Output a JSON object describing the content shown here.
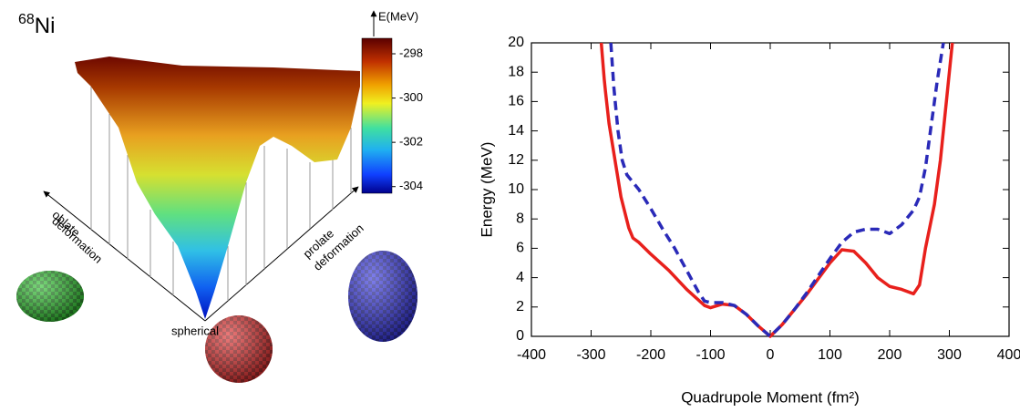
{
  "chart_data": [
    {
      "type": "surface",
      "title": {
        "mass": "68",
        "symbol": "Ni"
      },
      "colorbar_label": "E(MeV)",
      "clim": [
        -304.3,
        -297.3
      ],
      "cticks": [
        -298,
        -300,
        -302,
        -304
      ],
      "axis_labels": {
        "oblate": [
          "oblate",
          "deformation"
        ],
        "prolate": [
          "prolate",
          "deformation"
        ],
        "origin": "spherical"
      }
    },
    {
      "type": "line",
      "x_label": "Quadrupole Moment (fm²)",
      "y_label": "Energy (MeV)",
      "xlim": [
        -400,
        400
      ],
      "ylim": [
        0,
        20
      ],
      "xticks": [
        -400,
        -300,
        -200,
        -100,
        0,
        100,
        200,
        300,
        400
      ],
      "yticks": [
        0,
        2,
        4,
        6,
        8,
        10,
        12,
        14,
        16,
        18,
        20
      ],
      "series": [
        {
          "color": "#e8201c",
          "dash": false,
          "x": [
            -283,
            -278,
            -276,
            -270,
            -264,
            -250,
            -237,
            -230,
            -220,
            -200,
            -170,
            -140,
            -110,
            -100,
            -80,
            -60,
            -40,
            -20,
            0,
            20,
            40,
            60,
            80,
            100,
            120,
            140,
            160,
            180,
            200,
            220,
            240,
            250,
            260,
            275,
            285,
            295,
            305
          ],
          "values": [
            20,
            17.5,
            16.7,
            14.5,
            13,
            9.5,
            7.4,
            6.7,
            6.4,
            5.6,
            4.5,
            3.2,
            2.1,
            1.95,
            2.2,
            2.1,
            1.5,
            0.7,
            0,
            0.8,
            1.8,
            2.8,
            3.9,
            5.0,
            5.9,
            5.8,
            5.0,
            4.0,
            3.4,
            3.2,
            2.9,
            3.5,
            6,
            9,
            12,
            16,
            20
          ]
        },
        {
          "color": "#2a2ab8",
          "dash": true,
          "x": [
            -267,
            -262,
            -255,
            -248,
            -240,
            -220,
            -200,
            -180,
            -160,
            -140,
            -120,
            -110,
            -100,
            -80,
            -60,
            -40,
            -20,
            0,
            20,
            40,
            60,
            80,
            100,
            120,
            140,
            160,
            180,
            200,
            220,
            240,
            250,
            260,
            270,
            280,
            290
          ],
          "values": [
            20,
            17,
            14,
            12,
            11,
            10,
            8.7,
            7.3,
            6,
            4.5,
            3,
            2.4,
            2.3,
            2.3,
            2.1,
            1.5,
            0.7,
            0,
            0.8,
            1.8,
            2.9,
            4.1,
            5.3,
            6.4,
            7.1,
            7.3,
            7.3,
            7.0,
            7.6,
            8.6,
            9.5,
            11.5,
            14.5,
            17.5,
            20
          ]
        }
      ]
    }
  ]
}
